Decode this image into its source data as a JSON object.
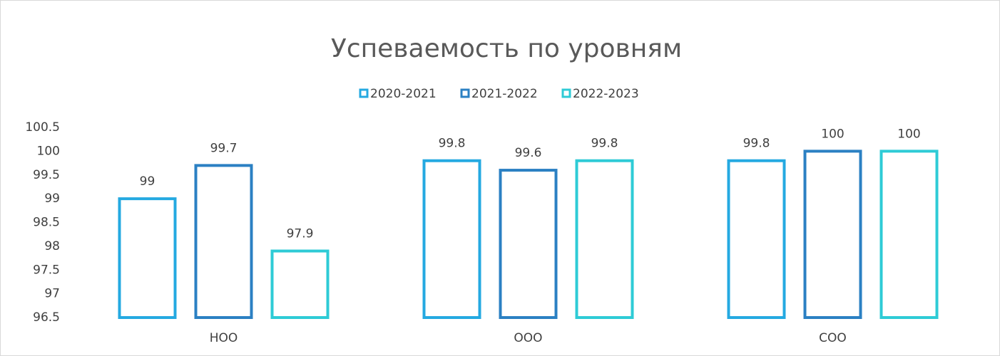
{
  "chart_data": {
    "type": "bar",
    "title": "Успеваемость по уровням",
    "categories": [
      "НОО",
      "ООО",
      "СОО"
    ],
    "series": [
      {
        "name": "2020-2021",
        "color": "#24a9e1",
        "values": [
          99,
          99.8,
          99.8
        ]
      },
      {
        "name": "2021-2022",
        "color": "#2b80c3",
        "values": [
          99.7,
          99.6,
          100
        ]
      },
      {
        "name": "2022-2023",
        "color": "#2ecbd6",
        "values": [
          97.9,
          99.8,
          100
        ]
      }
    ],
    "ylim": [
      96.5,
      100.5
    ],
    "yticks": [
      96.5,
      97,
      97.5,
      98,
      98.5,
      99,
      99.5,
      100,
      100.5
    ],
    "grid": false,
    "legend": "top"
  }
}
